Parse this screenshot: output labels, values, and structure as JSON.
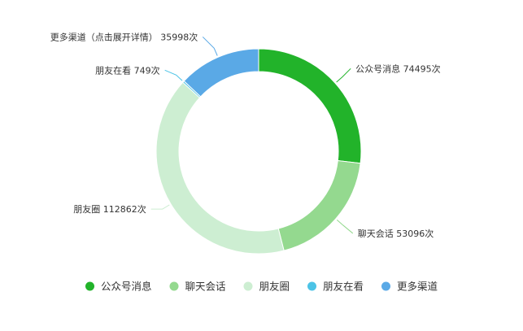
{
  "chart_data": {
    "type": "pie",
    "donut": true,
    "categories": [
      "公众号消息",
      "聊天会话",
      "朋友圈",
      "朋友在看",
      "更多渠道"
    ],
    "values": [
      74495,
      53096,
      112862,
      749,
      35998
    ],
    "labels": [
      "公众号消息 74495次",
      "聊天会话 53096次",
      "朋友圈 112862次",
      "朋友在看 749次",
      "更多渠道（点击展开详情） 35998次"
    ],
    "colors": [
      "#22b32a",
      "#94d98f",
      "#cdeed2",
      "#4cc3e6",
      "#5aa9e6"
    ],
    "legend": {
      "position": "bottom",
      "items": [
        "公众号消息",
        "聊天会话",
        "朋友圈",
        "朋友在看",
        "更多渠道"
      ]
    }
  }
}
